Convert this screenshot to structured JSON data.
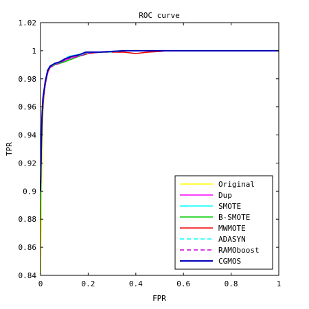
{
  "chart_data": {
    "type": "line",
    "title": "ROC curve",
    "xlabel": "FPR",
    "ylabel": "TPR",
    "xlim": [
      0,
      1
    ],
    "ylim": [
      0.84,
      1.02
    ],
    "xticks": [
      0,
      0.2,
      0.4,
      0.6,
      0.8,
      1
    ],
    "xtick_labels": [
      "0",
      "0.2",
      "0.4",
      "0.6",
      "0.8",
      "1"
    ],
    "yticks": [
      0.84,
      0.86,
      0.88,
      0.9,
      0.92,
      0.94,
      0.96,
      0.98,
      1,
      1.02
    ],
    "ytick_labels": [
      "0.84",
      "0.86",
      "0.88",
      "0.9",
      "0.92",
      "0.94",
      "0.96",
      "0.98",
      "1",
      "1.02"
    ],
    "grid": false,
    "legend_position": "bottom-right",
    "series": [
      {
        "name": "Original",
        "color": "#ffff00",
        "dash": "solid",
        "x": [
          0,
          0.003,
          0.006,
          0.01,
          0.015,
          0.02,
          0.03,
          0.04,
          0.06,
          0.08,
          0.1,
          0.13,
          0.16,
          0.2,
          0.25,
          0.3,
          0.38,
          0.45,
          0.5,
          1
        ],
        "y": [
          0.84,
          0.88,
          0.93,
          0.955,
          0.968,
          0.976,
          0.985,
          0.988,
          0.99,
          0.991,
          0.993,
          0.995,
          0.997,
          0.998,
          0.999,
          0.9995,
          1,
          1,
          1,
          1
        ]
      },
      {
        "name": "Dup",
        "color": "#ff00ff",
        "dash": "solid",
        "x": [
          0,
          0.004,
          0.008,
          0.012,
          0.02,
          0.03,
          0.04,
          0.06,
          0.08,
          0.1,
          0.13,
          0.16,
          0.2,
          0.25,
          0.3,
          0.36,
          0.42,
          0.5,
          1
        ],
        "y": [
          0.9,
          0.935,
          0.955,
          0.966,
          0.976,
          0.984,
          0.988,
          0.99,
          0.991,
          0.993,
          0.995,
          0.996,
          0.998,
          0.999,
          0.9995,
          1,
          1,
          1,
          1
        ]
      },
      {
        "name": "SMOTE",
        "color": "#00ffff",
        "dash": "solid",
        "x": [
          0,
          0.003,
          0.007,
          0.012,
          0.02,
          0.03,
          0.04,
          0.06,
          0.08,
          0.1,
          0.12,
          0.15,
          0.18,
          0.2,
          0.25,
          0.3,
          0.35,
          0.4,
          0.5,
          1
        ],
        "y": [
          0.88,
          0.92,
          0.95,
          0.965,
          0.976,
          0.985,
          0.989,
          0.991,
          0.992,
          0.994,
          0.996,
          0.997,
          0.998,
          0.999,
          0.999,
          0.9995,
          1,
          1,
          1,
          1
        ]
      },
      {
        "name": "B-SMOTE",
        "color": "#00cc00",
        "dash": "solid",
        "x": [
          0,
          0.004,
          0.008,
          0.013,
          0.02,
          0.03,
          0.04,
          0.06,
          0.08,
          0.1,
          0.13,
          0.16,
          0.2,
          0.25,
          0.3,
          0.36,
          0.42,
          0.5,
          1
        ],
        "y": [
          0.9,
          0.935,
          0.955,
          0.967,
          0.977,
          0.985,
          0.988,
          0.99,
          0.991,
          0.992,
          0.994,
          0.996,
          0.998,
          0.999,
          0.9995,
          1,
          1,
          1,
          1
        ]
      },
      {
        "name": "MWMOTE",
        "color": "#ee0000",
        "dash": "solid",
        "x": [
          0,
          0.004,
          0.008,
          0.012,
          0.02,
          0.03,
          0.04,
          0.06,
          0.08,
          0.1,
          0.13,
          0.16,
          0.2,
          0.25,
          0.3,
          0.35,
          0.4,
          0.45,
          0.5,
          0.53,
          1
        ],
        "y": [
          0.9,
          0.935,
          0.955,
          0.966,
          0.976,
          0.985,
          0.989,
          0.991,
          0.992,
          0.994,
          0.996,
          0.997,
          0.998,
          0.999,
          0.999,
          0.999,
          0.998,
          0.999,
          0.9995,
          1,
          1
        ]
      },
      {
        "name": "ADASYN",
        "color": "#00ffff",
        "dash": "dashed",
        "x": [
          0,
          0.003,
          0.007,
          0.012,
          0.02,
          0.03,
          0.04,
          0.06,
          0.08,
          0.1,
          0.12,
          0.15,
          0.2,
          0.25,
          0.3,
          0.35,
          0.4,
          0.5,
          1
        ],
        "y": [
          0.9,
          0.935,
          0.955,
          0.966,
          0.976,
          0.985,
          0.988,
          0.99,
          0.992,
          0.994,
          0.996,
          0.997,
          0.998,
          0.999,
          0.999,
          1,
          1,
          1,
          1
        ]
      },
      {
        "name": "RAMOboost",
        "color": "#cc00cc",
        "dash": "dashed",
        "x": [
          0,
          0.004,
          0.008,
          0.013,
          0.02,
          0.03,
          0.04,
          0.06,
          0.08,
          0.1,
          0.13,
          0.16,
          0.2,
          0.25,
          0.3,
          0.35,
          0.4,
          0.5,
          1
        ],
        "y": [
          0.9,
          0.935,
          0.955,
          0.966,
          0.976,
          0.985,
          0.988,
          0.99,
          0.991,
          0.993,
          0.995,
          0.996,
          0.998,
          0.999,
          0.9995,
          1,
          1,
          1,
          1
        ]
      },
      {
        "name": "CGMOS",
        "color": "#0000bb",
        "dash": "solid",
        "x": [
          0,
          0.003,
          0.006,
          0.01,
          0.015,
          0.02,
          0.03,
          0.04,
          0.06,
          0.08,
          0.1,
          0.13,
          0.16,
          0.19,
          0.2,
          0.25,
          0.3,
          0.35,
          0.4,
          0.5,
          1
        ],
        "y": [
          0.9,
          0.93,
          0.953,
          0.966,
          0.972,
          0.978,
          0.986,
          0.989,
          0.991,
          0.992,
          0.994,
          0.996,
          0.997,
          0.999,
          0.999,
          0.999,
          0.9995,
          1,
          1,
          1,
          1
        ]
      }
    ]
  }
}
